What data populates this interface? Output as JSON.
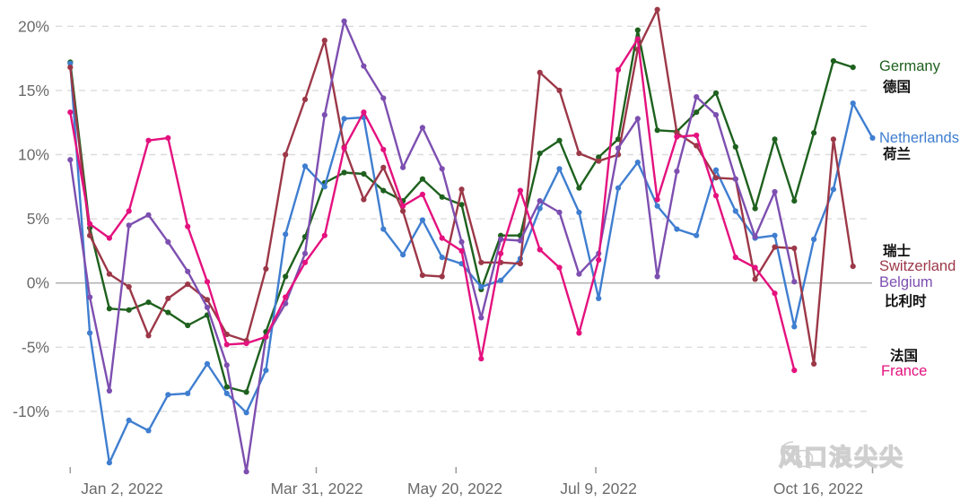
{
  "chart_data": {
    "type": "line",
    "x_axis": {
      "unit": "weeks_from_jan2_2022",
      "tick_labels": [
        "Jan 2, 2022",
        "Mar 31, 2022",
        "May 20, 2022",
        "Jul 9, 2022",
        "Oct 16, 2022"
      ],
      "tick_day_offsets": [
        0,
        88,
        138,
        188,
        287
      ]
    },
    "y_axis": {
      "tick_labels": [
        "20%",
        "15%",
        "10%",
        "5%",
        "0%",
        "-5%",
        "-10%"
      ],
      "tick_values": [
        20,
        15,
        10,
        5,
        0,
        -5,
        -10
      ],
      "ylim": [
        -15,
        20.6
      ],
      "grid": "dashed, solid line at 0"
    },
    "series": [
      {
        "key": "germany",
        "name": "Germany",
        "name_zh": "德国",
        "color": "#1e611e",
        "values": [
          17.2,
          4.3,
          -2.0,
          -2.1,
          -1.5,
          -2.3,
          -3.3,
          -2.5,
          -8.1,
          -8.5,
          -3.8,
          0.5,
          3.6,
          7.8,
          8.6,
          8.5,
          7.2,
          6.4,
          8.1,
          6.7,
          6.1,
          -0.5,
          3.7,
          3.7,
          10.1,
          11.1,
          7.4,
          9.8,
          11.2,
          19.7,
          11.9,
          11.8,
          13.3,
          14.8,
          10.6,
          5.8,
          11.2,
          6.4,
          11.7,
          17.3,
          16.8,
          null
        ]
      },
      {
        "key": "netherlands",
        "name": "Netherlands",
        "name_zh": "荷兰",
        "color": "#3f7ed0",
        "values": [
          17.1,
          -3.9,
          -14.0,
          -10.7,
          -11.5,
          -8.7,
          -8.6,
          -6.3,
          -8.6,
          -10.1,
          -6.8,
          3.8,
          9.1,
          7.5,
          12.8,
          12.9,
          4.2,
          2.2,
          4.9,
          2.0,
          1.5,
          -0.3,
          0.2,
          1.9,
          5.8,
          8.9,
          5.5,
          -1.2,
          7.4,
          9.4,
          6.0,
          4.2,
          3.7,
          8.8,
          5.6,
          3.5,
          3.7,
          -3.4,
          3.4,
          7.3,
          14.0,
          11.3
        ]
      },
      {
        "key": "switzerland",
        "name": "Switzerland",
        "name_zh": "瑞士",
        "color": "#9c3848",
        "values": [
          16.8,
          3.7,
          0.7,
          -0.3,
          -4.1,
          -1.2,
          -0.1,
          -1.3,
          -4.0,
          -4.5,
          1.1,
          10.0,
          14.3,
          18.9,
          10.6,
          6.5,
          9.0,
          5.6,
          0.6,
          0.5,
          7.3,
          1.6,
          1.6,
          1.5,
          16.4,
          15.0,
          10.1,
          9.5,
          10.0,
          18.2,
          21.3,
          11.7,
          10.7,
          8.2,
          8.1,
          0.3,
          2.8,
          2.7,
          -6.3,
          11.2,
          1.3,
          null
        ]
      },
      {
        "key": "belgium",
        "name": "Belgium",
        "name_zh": "比利时",
        "color": "#7d4fb0",
        "values": [
          9.6,
          -1.1,
          -8.4,
          4.5,
          5.3,
          3.2,
          0.9,
          -1.9,
          -6.4,
          -14.7,
          -4.2,
          -1.6,
          2.3,
          13.1,
          20.4,
          16.9,
          14.4,
          9.0,
          12.1,
          8.9,
          3.2,
          -2.7,
          3.4,
          3.3,
          6.4,
          5.5,
          0.7,
          2.3,
          10.5,
          12.8,
          0.5,
          8.7,
          14.5,
          13.1,
          8.1,
          3.6,
          7.1,
          0.1,
          null,
          null,
          null,
          null
        ]
      },
      {
        "key": "france",
        "name": "France",
        "name_zh": "法国",
        "color": "#e4117e",
        "values": [
          13.3,
          4.6,
          3.5,
          5.6,
          11.1,
          11.3,
          4.4,
          0.1,
          -4.8,
          -4.7,
          -4.2,
          -1.1,
          1.6,
          3.7,
          10.5,
          13.3,
          10.4,
          6.0,
          6.9,
          3.5,
          2.5,
          -5.9,
          2.3,
          7.2,
          2.6,
          1.2,
          -3.9,
          1.8,
          16.6,
          19.0,
          6.5,
          11.4,
          11.5,
          6.8,
          2.0,
          1.2,
          -0.8,
          -6.8,
          null,
          null,
          null,
          null
        ]
      }
    ],
    "legend_position": "right, next to line endpoints"
  },
  "legend": {
    "germany": {
      "en": "Germany",
      "zh": "德国"
    },
    "netherlands": {
      "en": "Netherlands",
      "zh": "荷兰"
    },
    "switzerland": {
      "en": "Switzerland",
      "zh": "瑞士"
    },
    "belgium": {
      "en": "Belgium",
      "zh": "比利时"
    },
    "france": {
      "en": "France",
      "zh": "法国"
    }
  },
  "watermark": {
    "icon": "wechat-icon",
    "text": "风口浪尖尖"
  },
  "colors": {
    "germany": "#1e611e",
    "netherlands": "#3f7ed0",
    "switzerland": "#9c3848",
    "belgium": "#7d4fb0",
    "france": "#e4117e",
    "grid": "#dcdcdc",
    "zero_line": "#b3b3b3",
    "axis_text": "#6b6b6b",
    "tick": "#9a9a9a",
    "watermark": "#cfcfcf"
  }
}
